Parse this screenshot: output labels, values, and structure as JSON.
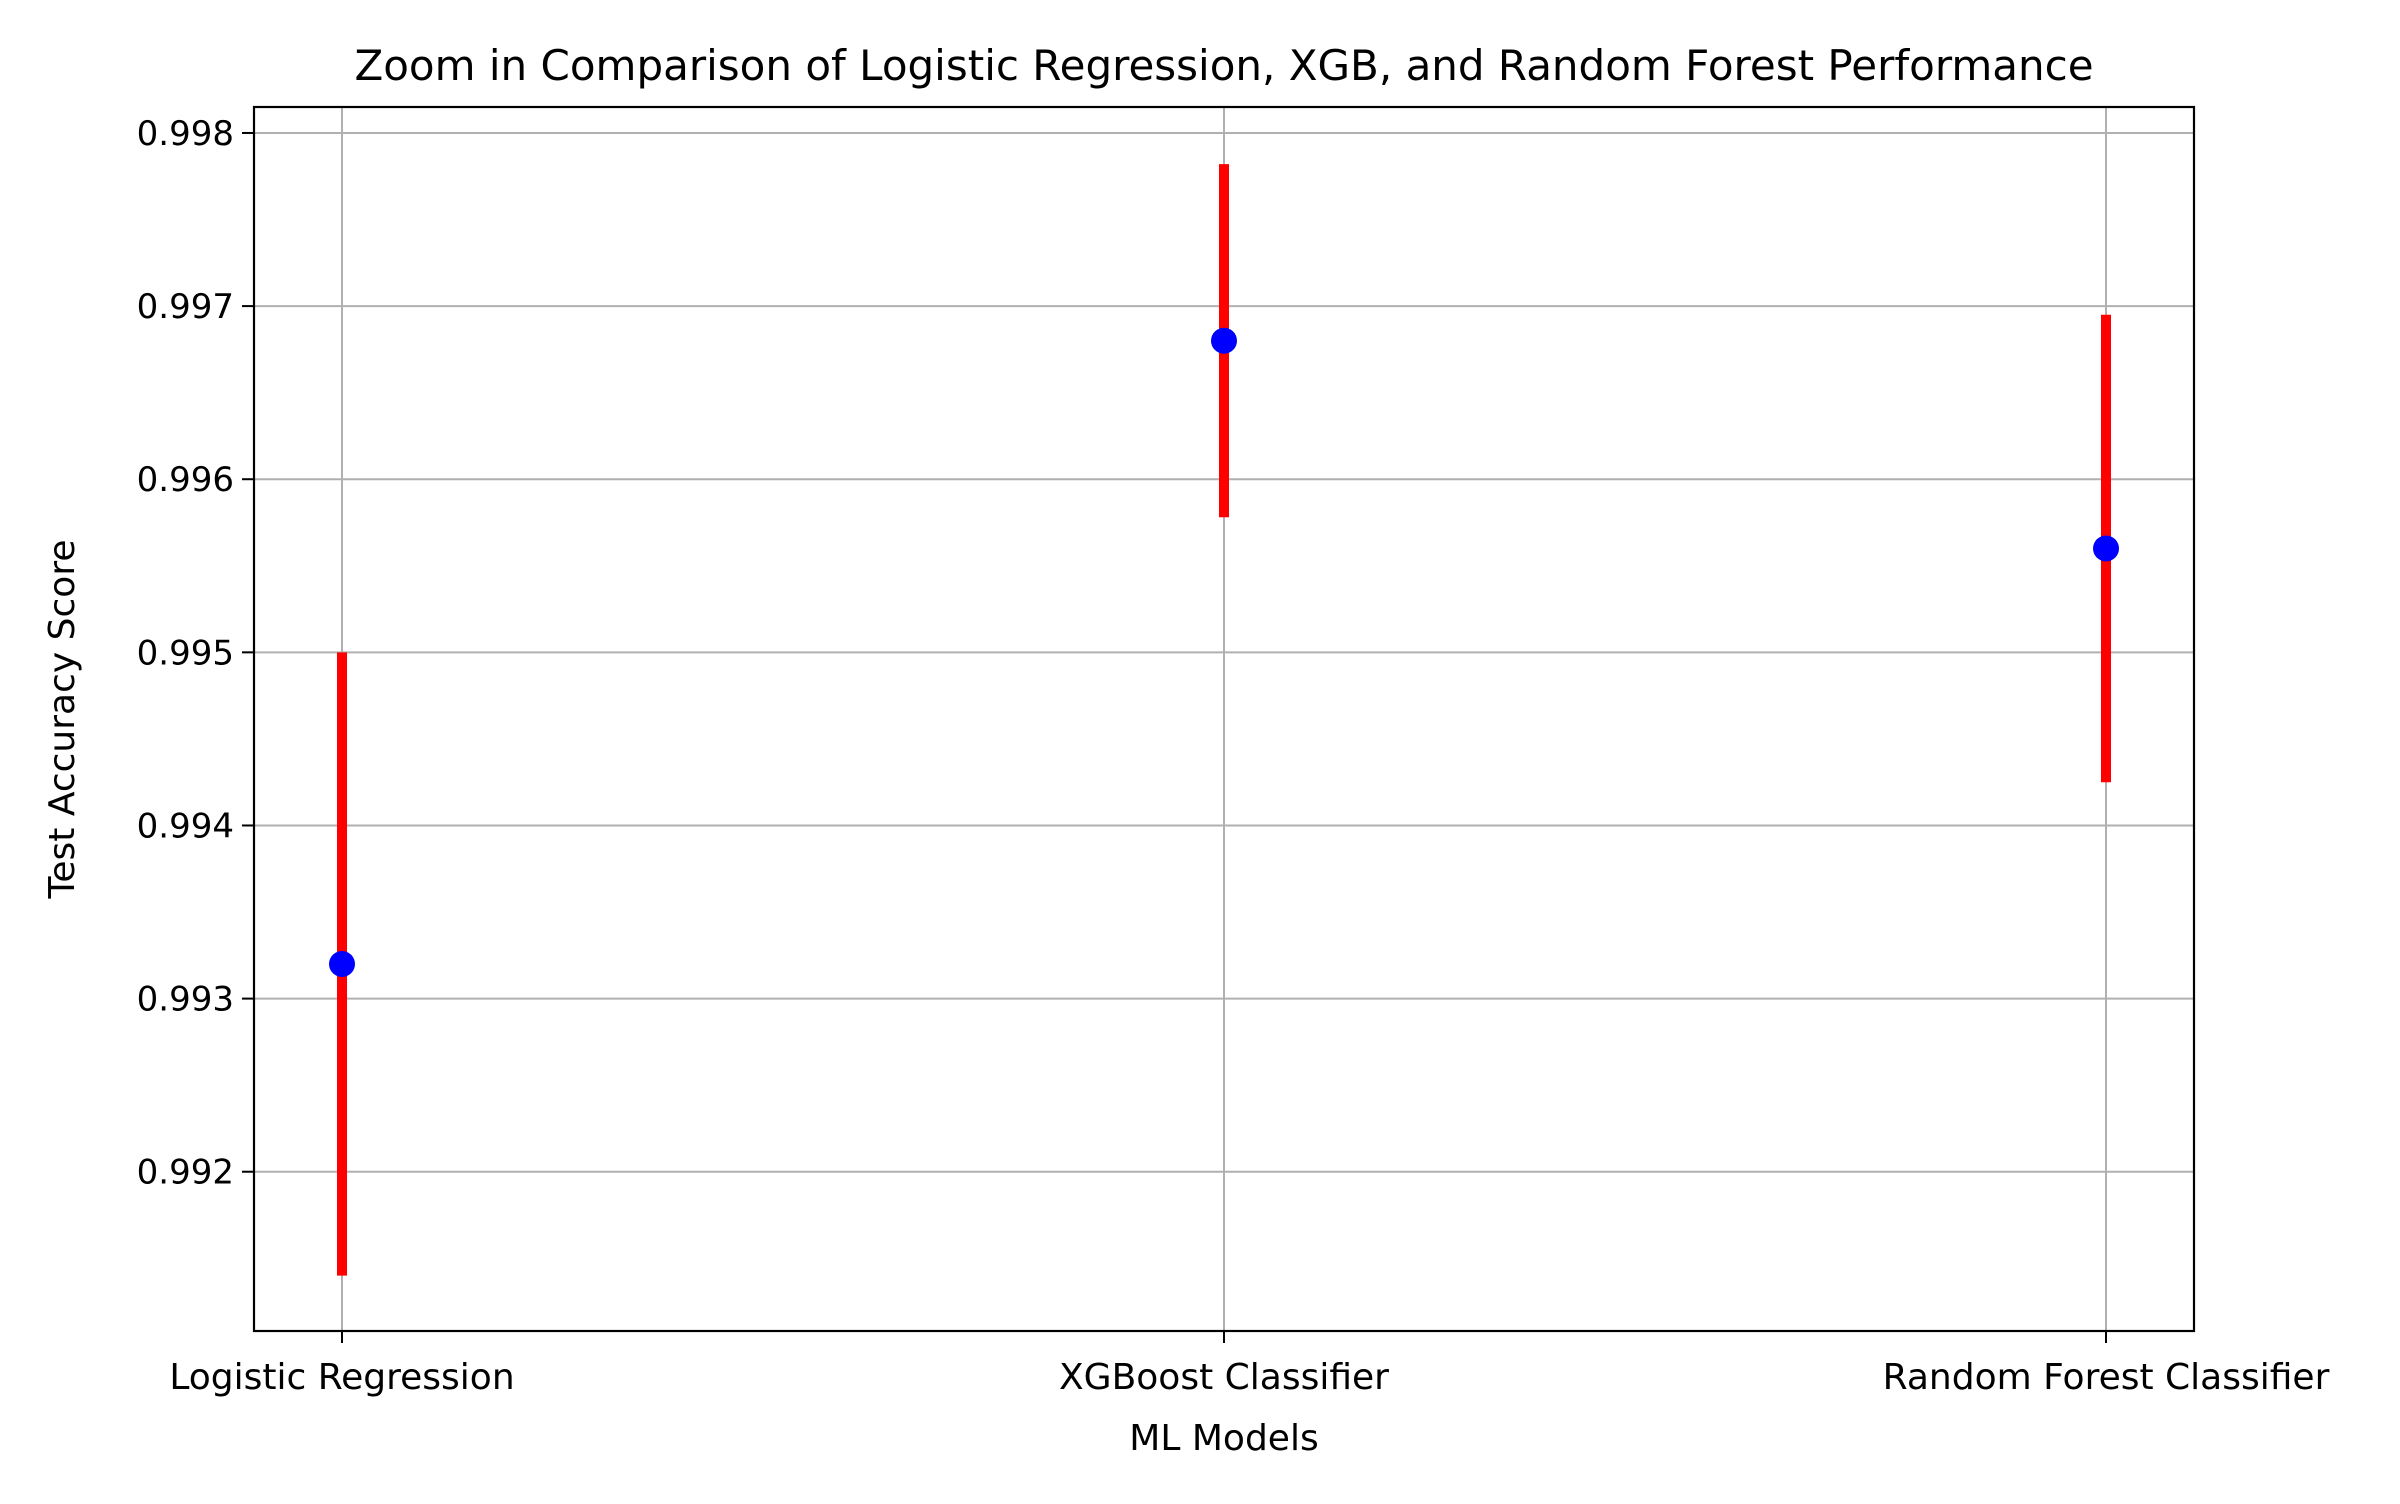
{
  "chart_data": {
    "type": "errorbar",
    "title": "Zoom in Comparison of Logistic Regression, XGB, and Random Forest Performance",
    "xlabel": "ML Models",
    "ylabel": "Test Accuracy Score",
    "categories": [
      "Logistic Regression",
      "XGBoost Classifier",
      "Random Forest Classifier"
    ],
    "series": [
      {
        "values": [
          0.9932,
          0.9968,
          0.9956
        ],
        "error": [
          0.0018,
          0.00102,
          0.00135
        ]
      }
    ],
    "yticks": [
      "0.992",
      "0.993",
      "0.994",
      "0.995",
      "0.996",
      "0.997",
      "0.998"
    ],
    "ytick_values": [
      0.992,
      0.993,
      0.994,
      0.995,
      0.996,
      0.997,
      0.998
    ],
    "ylim": [
      0.99108,
      0.99815
    ],
    "grid": true,
    "colors": {
      "marker": "#0000ff",
      "errorbar": "#ff0000",
      "grid": "#b0b0b0",
      "axis": "#000000"
    }
  }
}
